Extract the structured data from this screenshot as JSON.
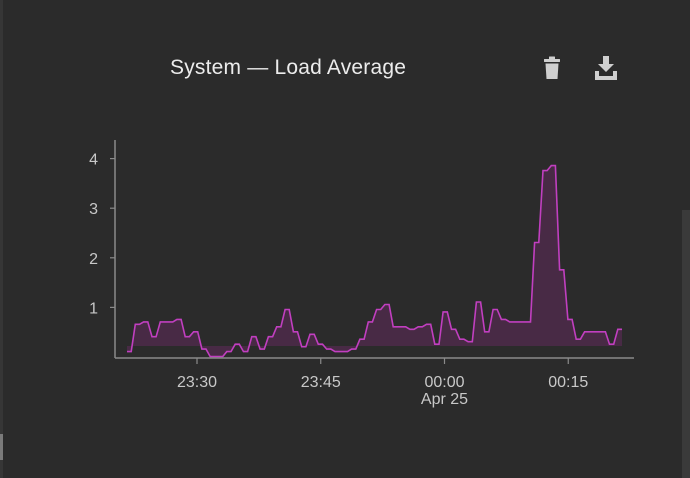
{
  "panel": {
    "title": "System — Load Average",
    "delete_icon": "trash-icon",
    "download_icon": "download-icon"
  },
  "colors": {
    "background": "#2b2b2b",
    "series_line": "#c13fc0",
    "series_fill": "#4a2a47",
    "axis": "#8a8a8a",
    "tick_text": "#c8c8c8",
    "title_text": "#ececec",
    "icon": "#cfcfcf"
  },
  "chart_data": {
    "type": "area",
    "title": "System — Load Average",
    "xlabel": "",
    "ylabel": "",
    "grid": false,
    "legend": "none",
    "ylim": [
      0,
      4.2
    ],
    "xlim": [
      "23:26",
      "00:26"
    ],
    "yticks": [
      "1",
      "2",
      "3",
      "4"
    ],
    "ytick_values": [
      1,
      2,
      3,
      4
    ],
    "xticks": [
      "23:30",
      "23:45",
      "00:00",
      "00:15"
    ],
    "xtick_minutes": [
      4,
      19,
      34,
      49
    ],
    "xtick_sublabels": [
      "",
      "",
      "Apr 25",
      ""
    ],
    "series": [
      {
        "values": [
          0.3,
          0.3,
          0.85,
          0.85,
          0.9,
          0.9,
          0.6,
          0.6,
          0.9,
          0.9,
          0.9,
          0.9,
          0.95,
          0.95,
          0.6,
          0.6,
          0.7,
          0.7,
          0.35,
          0.35,
          0.2,
          0.2,
          0.2,
          0.2,
          0.3,
          0.3,
          0.45,
          0.45,
          0.3,
          0.3,
          0.6,
          0.6,
          0.35,
          0.35,
          0.6,
          0.6,
          0.8,
          0.8,
          1.15,
          1.15,
          0.7,
          0.7,
          0.4,
          0.4,
          0.65,
          0.65,
          0.45,
          0.45,
          0.35,
          0.35,
          0.3,
          0.3,
          0.3,
          0.3,
          0.35,
          0.35,
          0.55,
          0.55,
          0.9,
          0.9,
          1.15,
          1.15,
          1.25,
          1.25,
          0.8,
          0.8,
          0.8,
          0.8,
          0.75,
          0.75,
          0.8,
          0.8,
          0.85,
          0.85,
          0.45,
          0.45,
          1.1,
          1.1,
          0.75,
          0.75,
          0.55,
          0.55,
          0.5,
          0.5,
          1.3,
          1.3,
          0.7,
          0.7,
          1.15,
          1.15,
          0.95,
          0.95,
          0.9,
          0.9,
          0.9,
          0.9,
          0.9,
          0.9,
          2.5,
          2.5,
          3.95,
          3.95,
          4.05,
          4.05,
          1.95,
          1.95,
          0.95,
          0.95,
          0.55,
          0.55,
          0.7,
          0.7,
          0.7,
          0.7,
          0.7,
          0.7,
          0.45,
          0.45,
          0.75,
          0.75
        ]
      }
    ]
  }
}
